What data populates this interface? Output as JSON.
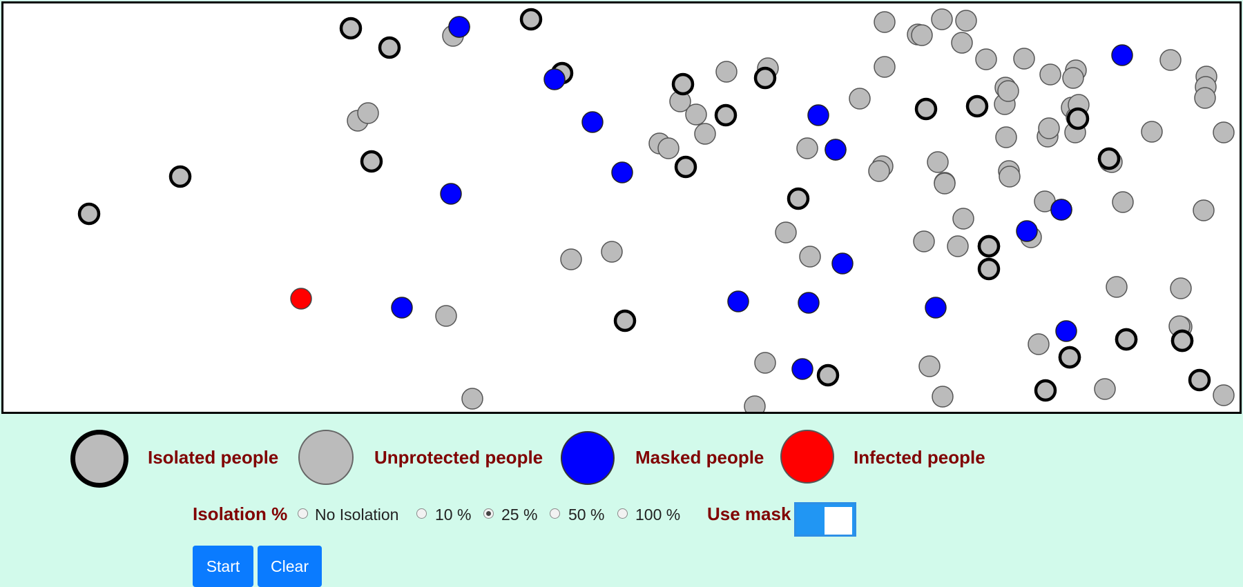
{
  "colors": {
    "unprotected": "#bbbbbb",
    "masked": "#0000ff",
    "infected": "#ff0000",
    "isolated_border": "#000000",
    "label": "#800000",
    "background": "#d2faeb",
    "button": "#0a7bff",
    "toggle": "#2196f3"
  },
  "legend": {
    "isolated": "Isolated people",
    "unprotected": "Unprotected people",
    "masked": "Masked people",
    "infected": "Infected people"
  },
  "controls": {
    "isolation_label": "Isolation %",
    "isolation_options": [
      "No Isolation",
      "10 %",
      "25 %",
      "50 %",
      "100 %"
    ],
    "isolation_selected": "25 %",
    "mask_label": "Use mask",
    "mask_enabled": true
  },
  "buttons": {
    "start": "Start",
    "clear": "Clear"
  },
  "simulation": {
    "people_counts": {
      "isolated": 30,
      "unprotected": 75,
      "masked": 20,
      "infected": 1
    }
  }
}
